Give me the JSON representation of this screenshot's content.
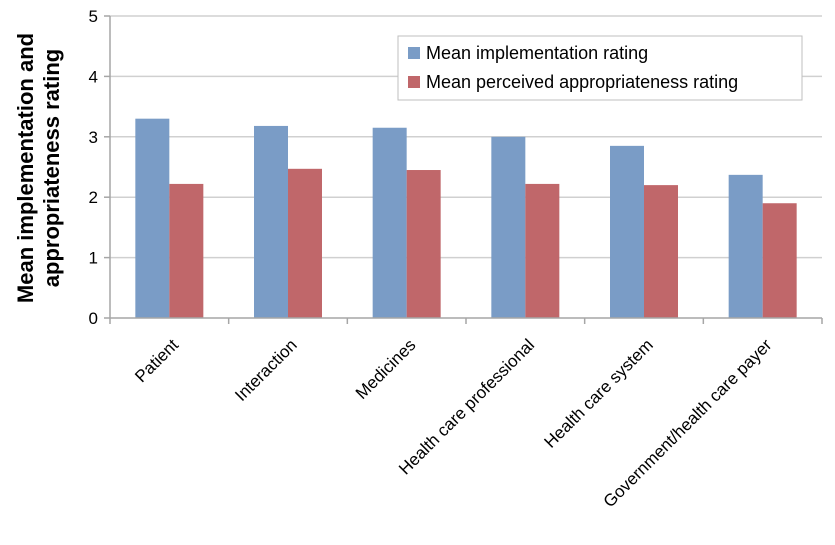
{
  "chart_data": {
    "type": "bar",
    "categories": [
      "Patient",
      "Interaction",
      "Medicines",
      "Health care professional",
      "Health care system",
      "Government/health care payer"
    ],
    "series": [
      {
        "name": "Mean implementation rating",
        "values": [
          3.3,
          3.18,
          3.15,
          3.0,
          2.85,
          2.37
        ],
        "color": "#7a9cc6"
      },
      {
        "name": "Mean perceived appropriateness rating",
        "values": [
          2.22,
          2.47,
          2.45,
          2.22,
          2.2,
          1.9
        ],
        "color": "#c0676a"
      }
    ],
    "ylabel_lines": [
      "Mean implementation and",
      "appropriateness rating"
    ],
    "xlabel": "",
    "ylim": [
      0,
      5
    ],
    "yticks": [
      "0",
      "1",
      "2",
      "3",
      "4",
      "5"
    ],
    "grid": true,
    "legend_position": "top-right"
  }
}
